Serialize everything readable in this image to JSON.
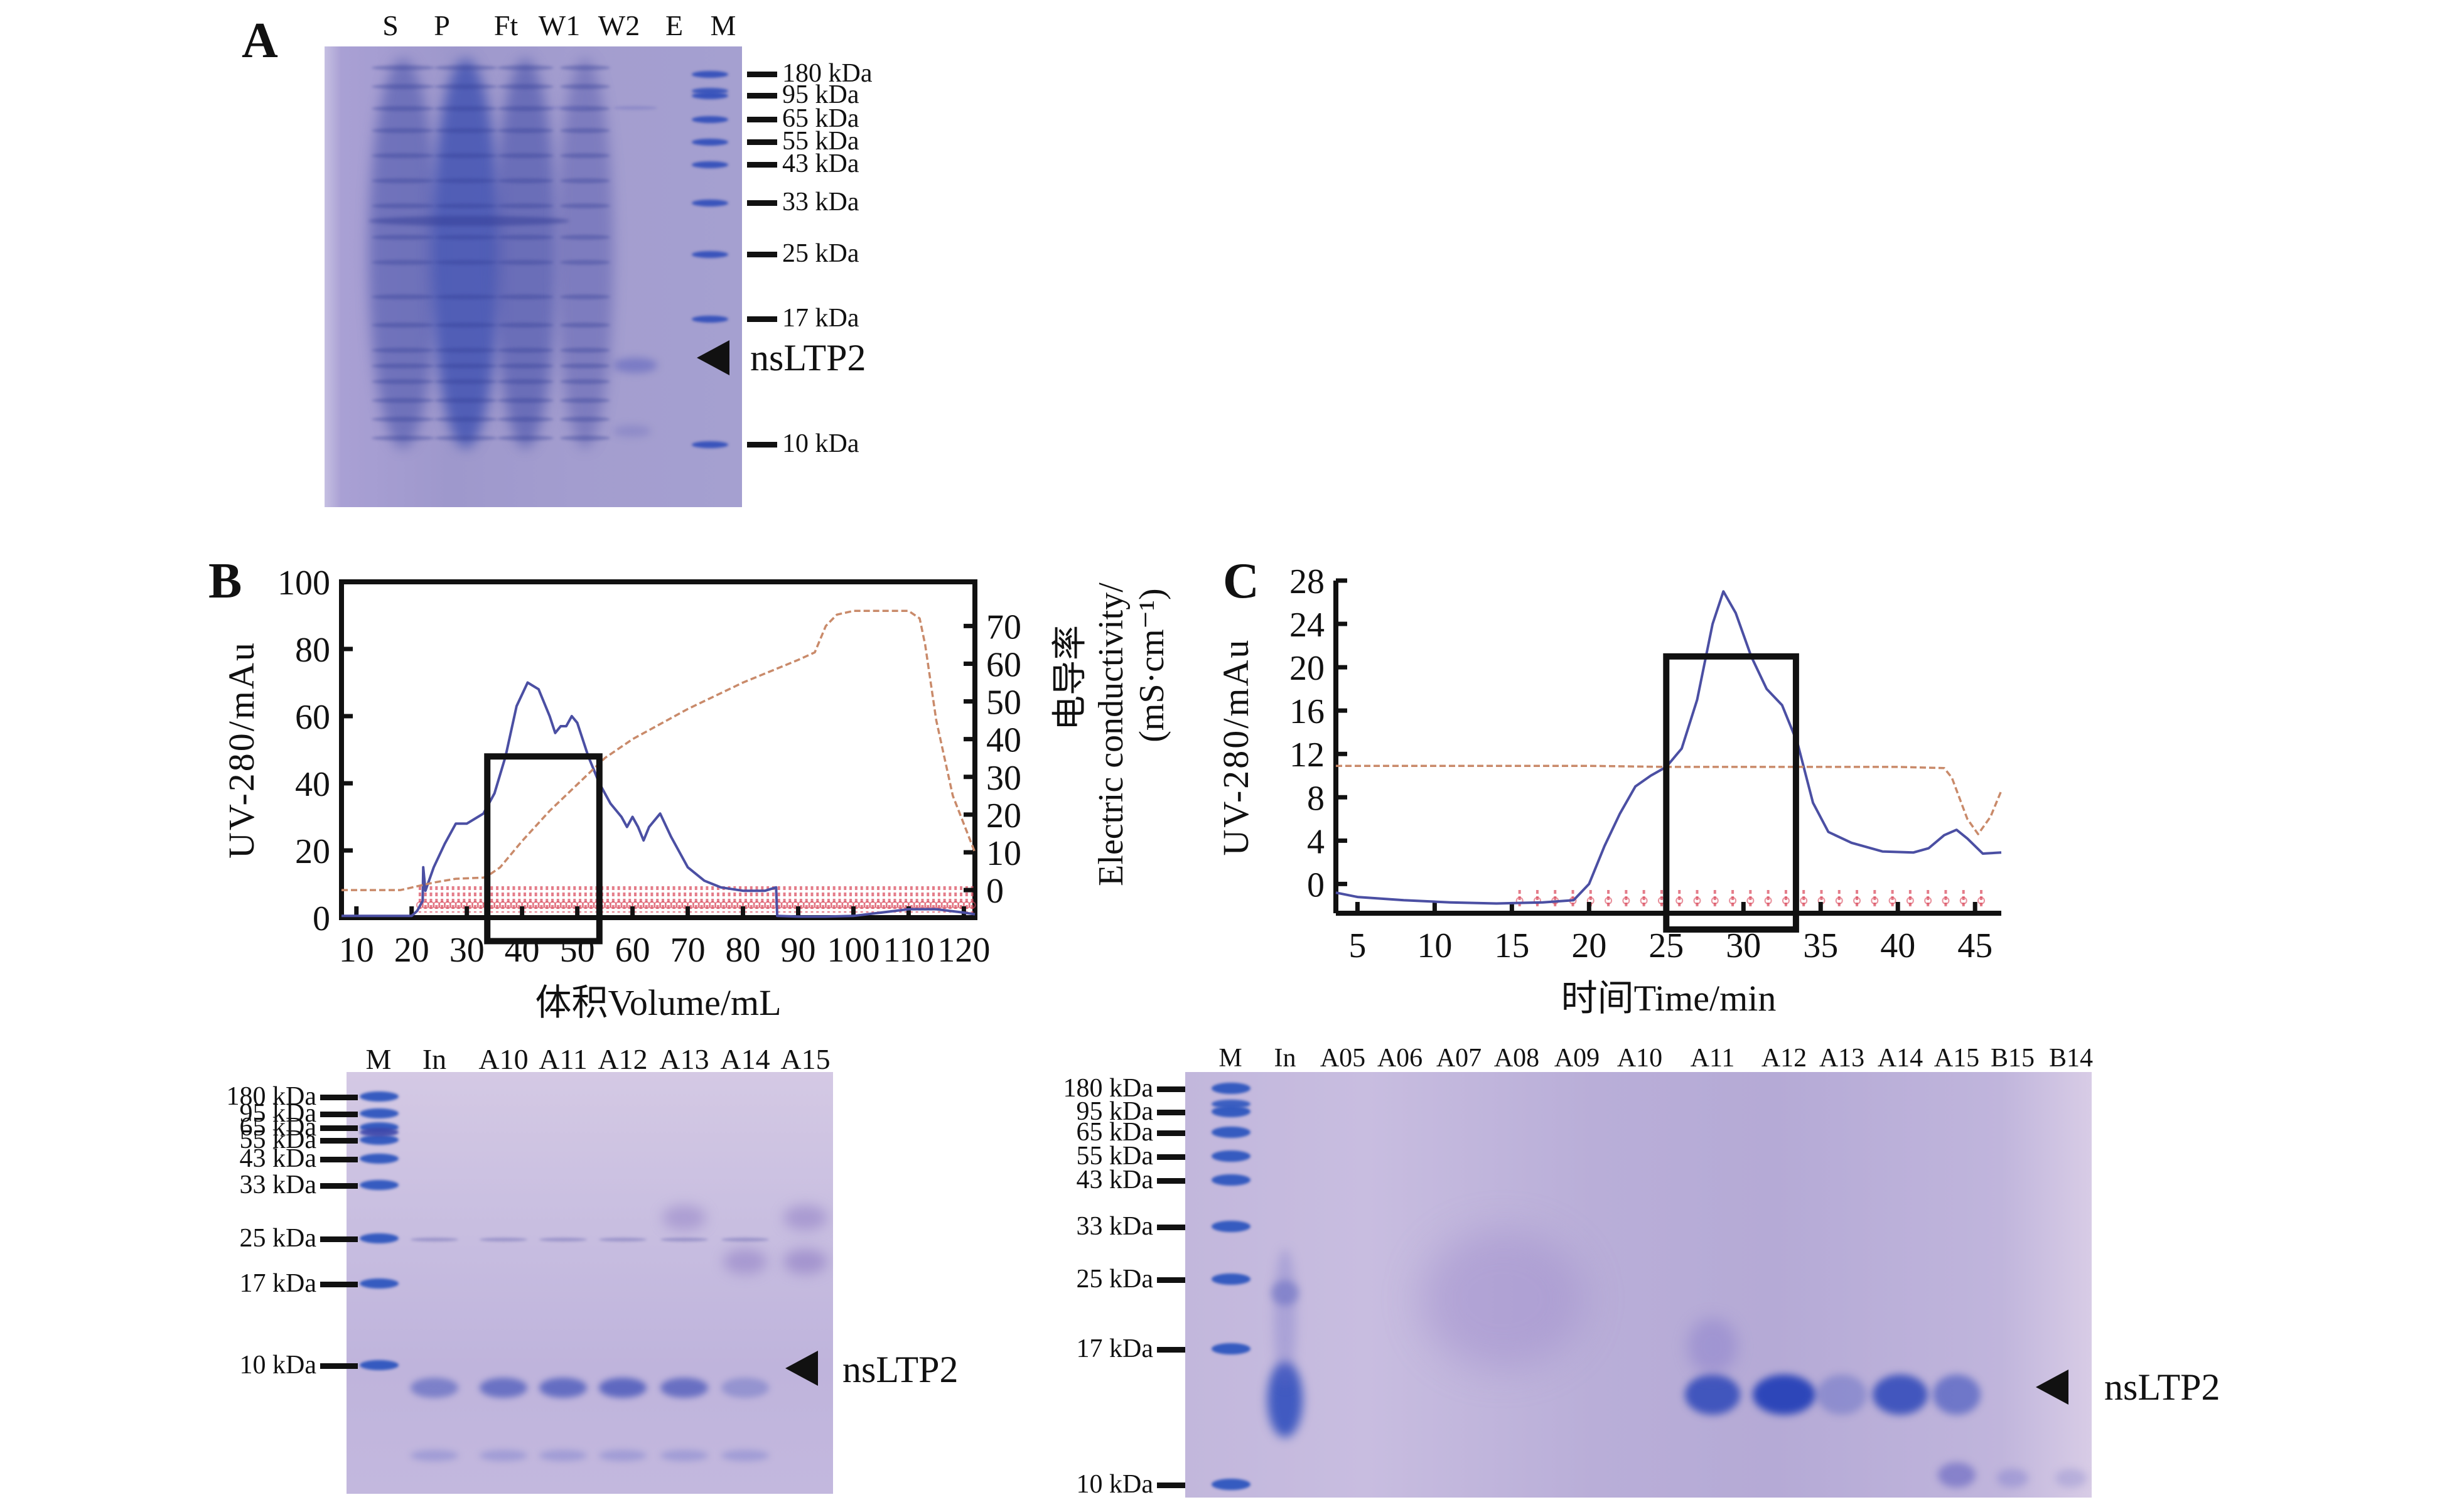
{
  "panels": {
    "A": {
      "letter": "A",
      "lanes": [
        "S",
        "P",
        "Ft",
        "W1",
        "W2",
        "E",
        "M"
      ],
      "markers": [
        "180 kDa",
        "95 kDa",
        "65 kDa",
        "55 kDa",
        "43 kDa",
        "33 kDa",
        "25 kDa",
        "17 kDa",
        "10 kDa"
      ],
      "target_label": "nsLTP2"
    },
    "B": {
      "letter": "B"
    },
    "C": {
      "letter": "C"
    },
    "gel_B": {
      "lanes": [
        "M",
        "In",
        "A10",
        "A11",
        "A12",
        "A13",
        "A14",
        "A15"
      ],
      "markers": [
        "180 kDa",
        "95 kDa",
        "65 kDa",
        "55 kDa",
        "43 kDa",
        "33 kDa",
        "25 kDa",
        "17 kDa",
        "10 kDa"
      ],
      "target_label": "nsLTP2"
    },
    "gel_C": {
      "lanes": [
        "M",
        "In",
        "A05",
        "A06",
        "A07",
        "A08",
        "A09",
        "A10",
        "A11",
        "A12",
        "A13",
        "A14",
        "A15",
        "B15",
        "B14"
      ],
      "markers": [
        "180 kDa",
        "95 kDa",
        "65 kDa",
        "55 kDa",
        "43 kDa",
        "33 kDa",
        "25 kDa",
        "17 kDa",
        "10 kDa"
      ],
      "target_label": "nsLTP2"
    }
  },
  "colors": {
    "uv_trace": "#4b4fa3",
    "conductivity_trace": "#c98a6a",
    "fraction_marks": "#d9475a",
    "gel_background": "#a9a0d0",
    "gel_band": "#3d4fae",
    "highlight_box": "#111111"
  },
  "chart_data": [
    {
      "id": "B",
      "type": "line",
      "title": "",
      "xlabel": "体积Volume/mL",
      "ylabel": "UV-280/mAu",
      "y2label_cn": "电导率",
      "y2label_en": "Electric conductivity/",
      "y2label_unit": "(mS·cm⁻¹)",
      "xlim": [
        7.3,
        122
      ],
      "ylim": [
        0,
        100
      ],
      "y2lim": [
        -7.3,
        81.7
      ],
      "xticks": [
        10,
        20,
        30,
        40,
        50,
        60,
        70,
        80,
        90,
        100,
        110,
        120
      ],
      "yticks": [
        0,
        20,
        40,
        60,
        80,
        100
      ],
      "y2ticks": [
        0,
        10,
        20,
        30,
        40,
        50,
        60,
        70
      ],
      "grid": false,
      "series": [
        {
          "name": "UV-280",
          "axis": "left",
          "x": [
            7.3,
            20,
            21,
            22,
            22.1,
            22.5,
            24,
            26,
            28,
            30,
            33,
            35,
            37,
            39,
            41,
            43,
            45,
            46,
            47,
            48,
            49,
            50,
            52,
            54,
            56,
            58,
            59,
            60,
            61,
            62,
            63,
            65,
            67,
            70,
            73,
            76,
            80,
            84,
            86,
            86.2,
            90,
            95,
            100,
            105,
            110,
            115,
            120,
            122
          ],
          "y": [
            0.5,
            0.5,
            2,
            5,
            15,
            8,
            15,
            22,
            28,
            28,
            31,
            37,
            48,
            63,
            70,
            68,
            60,
            55,
            57,
            57,
            60,
            58,
            48,
            40,
            34,
            30,
            27,
            30,
            27,
            23,
            27,
            31,
            24,
            15,
            11,
            9,
            8,
            8,
            9,
            0.5,
            0.3,
            0.3,
            0.5,
            1.5,
            2.5,
            2.5,
            1.5,
            1
          ]
        },
        {
          "name": "Electric conductivity",
          "axis": "right",
          "x": [
            7.3,
            18,
            21,
            24,
            28,
            33,
            34,
            36,
            40,
            45,
            50,
            55,
            60,
            70,
            80,
            90,
            93,
            95,
            97,
            100,
            105,
            110,
            112,
            113,
            115,
            118,
            122
          ],
          "y": [
            0,
            0,
            1,
            2,
            3,
            3.3,
            4,
            6,
            13,
            21,
            28,
            35,
            40,
            48,
            55,
            61,
            63,
            70,
            73,
            74,
            74,
            74,
            72,
            65,
            45,
            25,
            10
          ]
        }
      ],
      "highlight_box": {
        "x": [
          33.7,
          54
        ],
        "y": [
          -7,
          48
        ]
      },
      "annotations": [
        "fraction markers"
      ]
    },
    {
      "id": "C",
      "type": "line",
      "title": "",
      "xlabel": "时间Time/min",
      "ylabel": "UV-280/mAu",
      "xlim": [
        3.6,
        46.7
      ],
      "ylim": [
        -2.7,
        28
      ],
      "xticks": [
        5,
        10,
        15,
        20,
        25,
        30,
        35,
        40,
        45
      ],
      "yticks": [
        0,
        4,
        8,
        12,
        16,
        20,
        24,
        28
      ],
      "grid": false,
      "series": [
        {
          "name": "UV-280",
          "x": [
            3.6,
            5,
            8,
            11,
            14,
            17,
            19,
            20,
            21,
            22,
            23,
            24,
            25,
            26,
            27,
            28,
            28.7,
            29.5,
            30.5,
            31.5,
            32.5,
            33.5,
            34.5,
            35.5,
            37,
            39,
            41,
            42,
            43,
            43.8,
            44.5,
            45.5,
            46.7
          ],
          "y": [
            -0.8,
            -1.2,
            -1.5,
            -1.7,
            -1.8,
            -1.7,
            -1.5,
            0,
            3.5,
            6.5,
            9,
            10,
            10.8,
            12.5,
            17,
            24,
            27,
            25,
            21,
            18,
            16.5,
            13,
            7.5,
            4.8,
            3.8,
            3.0,
            2.9,
            3.3,
            4.5,
            5.0,
            4.2,
            2.8,
            2.9
          ]
        },
        {
          "name": "Conductivity",
          "x": [
            3.6,
            10,
            20,
            25,
            30,
            35,
            40,
            43,
            43.5,
            44.5,
            45.2,
            46,
            46.7
          ],
          "y": [
            10.9,
            10.9,
            10.9,
            10.8,
            10.8,
            10.8,
            10.8,
            10.7,
            9.8,
            6.0,
            4.6,
            6.2,
            8.6
          ]
        }
      ],
      "highlight_box": {
        "x": [
          25,
          33.4
        ],
        "y": [
          -4.2,
          21
        ]
      },
      "annotations": [
        "fraction markers"
      ]
    }
  ]
}
